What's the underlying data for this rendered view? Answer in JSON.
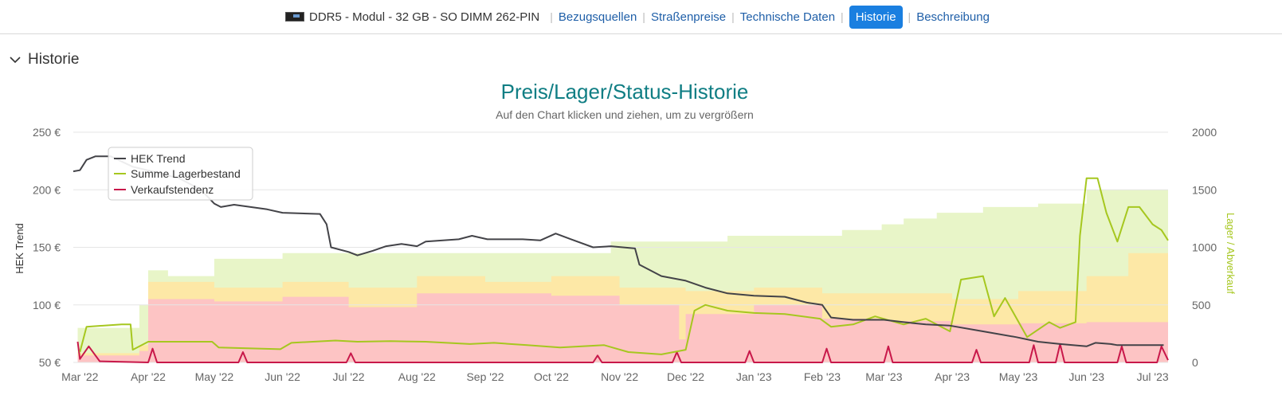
{
  "nav": {
    "product": "DDR5 - Modul - 32 GB - SO DIMM 262-PIN",
    "links": [
      "Bezugsquellen",
      "Straßenpreise",
      "Technische Daten",
      "Historie",
      "Beschreibung"
    ],
    "active": "Historie"
  },
  "section": {
    "title": "Historie",
    "icon": "chevron-down-icon"
  },
  "chart_data": {
    "type": "line",
    "title": "Preis/Lager/Status-Historie",
    "subtitle": "Auf den Chart klicken und ziehen, um zu vergrößern",
    "ylabel": "HEK Trend",
    "y2label": "Lager / Abverkauf",
    "ylim": [
      50,
      250
    ],
    "y2lim": [
      0,
      2000
    ],
    "y_ticks": [
      "50 €",
      "100 €",
      "150 €",
      "200 €",
      "250 €"
    ],
    "y2_ticks": [
      "0",
      "500",
      "1000",
      "1500",
      "2000"
    ],
    "x_ticks": [
      "Mar '22",
      "Apr '22",
      "May '22",
      "Jun '22",
      "Jul '22",
      "Aug '22",
      "Sep '22",
      "Oct '22",
      "Nov '22",
      "Dec '22",
      "Jan '23",
      "Feb '23",
      "Mar '23",
      "Apr '23",
      "May '23",
      "Jun '23",
      "Jul '23"
    ],
    "x_range": [
      "2022-02-26",
      "2023-07-08"
    ],
    "grid": true,
    "legend_position": "top-left",
    "colors": {
      "hek": "#434348",
      "lager": "#a6c71f",
      "verkauf": "#c8184a",
      "band_green": "#e8f5c8",
      "band_yellow": "#fde8a6",
      "band_red": "#fdc4c4"
    },
    "series": [
      {
        "name": "HEK Trend",
        "axis": "left",
        "points": [
          [
            "2022-02-26",
            216
          ],
          [
            "2022-03-01",
            217
          ],
          [
            "2022-03-04",
            226
          ],
          [
            "2022-03-08",
            229
          ],
          [
            "2022-03-15",
            229
          ],
          [
            "2022-03-25",
            220
          ],
          [
            "2022-04-05",
            215
          ],
          [
            "2022-04-15",
            210
          ],
          [
            "2022-04-25",
            200
          ],
          [
            "2022-05-01",
            188
          ],
          [
            "2022-05-04",
            185
          ],
          [
            "2022-05-10",
            187
          ],
          [
            "2022-05-25",
            183
          ],
          [
            "2022-06-01",
            180
          ],
          [
            "2022-06-18",
            179
          ],
          [
            "2022-06-21",
            170
          ],
          [
            "2022-06-23",
            150
          ],
          [
            "2022-07-01",
            146
          ],
          [
            "2022-07-05",
            143
          ],
          [
            "2022-07-12",
            147
          ],
          [
            "2022-07-18",
            151
          ],
          [
            "2022-07-25",
            153
          ],
          [
            "2022-08-01",
            151
          ],
          [
            "2022-08-05",
            155
          ],
          [
            "2022-08-20",
            157
          ],
          [
            "2022-08-26",
            160
          ],
          [
            "2022-09-02",
            157
          ],
          [
            "2022-09-08",
            157
          ],
          [
            "2022-09-18",
            157
          ],
          [
            "2022-09-26",
            156
          ],
          [
            "2022-10-03",
            162
          ],
          [
            "2022-10-10",
            157
          ],
          [
            "2022-10-20",
            150
          ],
          [
            "2022-10-28",
            151
          ],
          [
            "2022-11-08",
            149
          ],
          [
            "2022-11-10",
            135
          ],
          [
            "2022-11-20",
            125
          ],
          [
            "2022-12-01",
            121
          ],
          [
            "2022-12-10",
            115
          ],
          [
            "2022-12-20",
            110
          ],
          [
            "2023-01-01",
            108
          ],
          [
            "2023-01-15",
            107
          ],
          [
            "2023-01-25",
            102
          ],
          [
            "2023-02-01",
            100
          ],
          [
            "2023-02-05",
            89
          ],
          [
            "2023-02-15",
            87
          ],
          [
            "2023-03-01",
            87
          ],
          [
            "2023-03-10",
            85
          ],
          [
            "2023-03-20",
            83
          ],
          [
            "2023-03-31",
            82
          ],
          [
            "2023-04-15",
            77
          ],
          [
            "2023-04-30",
            72
          ],
          [
            "2023-05-10",
            68
          ],
          [
            "2023-05-20",
            66
          ],
          [
            "2023-06-01",
            64
          ],
          [
            "2023-06-05",
            67
          ],
          [
            "2023-06-12",
            66
          ],
          [
            "2023-06-15",
            65
          ],
          [
            "2023-07-01",
            65
          ],
          [
            "2023-07-06",
            65
          ]
        ]
      },
      {
        "name": "Summe Lagerbestand",
        "axis": "right",
        "points": [
          [
            "2022-03-01",
            90
          ],
          [
            "2022-03-04",
            310
          ],
          [
            "2022-03-20",
            330
          ],
          [
            "2022-03-24",
            330
          ],
          [
            "2022-03-25",
            110
          ],
          [
            "2022-04-01",
            180
          ],
          [
            "2022-04-30",
            180
          ],
          [
            "2022-05-03",
            130
          ],
          [
            "2022-05-31",
            115
          ],
          [
            "2022-06-05",
            170
          ],
          [
            "2022-06-25",
            190
          ],
          [
            "2022-07-05",
            180
          ],
          [
            "2022-07-20",
            185
          ],
          [
            "2022-08-05",
            180
          ],
          [
            "2022-08-25",
            160
          ],
          [
            "2022-09-05",
            170
          ],
          [
            "2022-09-20",
            150
          ],
          [
            "2022-10-05",
            130
          ],
          [
            "2022-10-25",
            150
          ],
          [
            "2022-11-05",
            90
          ],
          [
            "2022-11-20",
            70
          ],
          [
            "2022-12-01",
            110
          ],
          [
            "2022-12-05",
            450
          ],
          [
            "2022-12-10",
            500
          ],
          [
            "2022-12-20",
            450
          ],
          [
            "2023-01-01",
            430
          ],
          [
            "2023-01-15",
            420
          ],
          [
            "2023-01-31",
            380
          ],
          [
            "2023-02-05",
            310
          ],
          [
            "2023-02-15",
            330
          ],
          [
            "2023-02-25",
            400
          ],
          [
            "2023-03-10",
            330
          ],
          [
            "2023-03-20",
            380
          ],
          [
            "2023-03-31",
            270
          ],
          [
            "2023-04-05",
            720
          ],
          [
            "2023-04-15",
            750
          ],
          [
            "2023-04-20",
            400
          ],
          [
            "2023-04-25",
            560
          ],
          [
            "2023-05-05",
            220
          ],
          [
            "2023-05-15",
            350
          ],
          [
            "2023-05-20",
            300
          ],
          [
            "2023-05-27",
            350
          ],
          [
            "2023-05-29",
            1100
          ],
          [
            "2023-06-01",
            1600
          ],
          [
            "2023-06-06",
            1600
          ],
          [
            "2023-06-10",
            1300
          ],
          [
            "2023-06-15",
            1050
          ],
          [
            "2023-06-20",
            1350
          ],
          [
            "2023-06-25",
            1350
          ],
          [
            "2023-07-01",
            1200
          ],
          [
            "2023-07-05",
            1150
          ],
          [
            "2023-07-08",
            1060
          ]
        ]
      },
      {
        "name": "Verkaufstendenz",
        "axis": "right",
        "points": [
          [
            "2022-02-28",
            180
          ],
          [
            "2022-03-01",
            30
          ],
          [
            "2022-03-05",
            140
          ],
          [
            "2022-03-10",
            10
          ],
          [
            "2022-04-01",
            0
          ],
          [
            "2022-04-03",
            120
          ],
          [
            "2022-04-05",
            0
          ],
          [
            "2022-05-12",
            0
          ],
          [
            "2022-05-14",
            90
          ],
          [
            "2022-05-16",
            0
          ],
          [
            "2022-06-30",
            0
          ],
          [
            "2022-07-02",
            80
          ],
          [
            "2022-07-04",
            0
          ],
          [
            "2022-10-20",
            0
          ],
          [
            "2022-10-22",
            60
          ],
          [
            "2022-10-24",
            0
          ],
          [
            "2022-11-25",
            0
          ],
          [
            "2022-11-27",
            90
          ],
          [
            "2022-11-29",
            0
          ],
          [
            "2022-12-28",
            0
          ],
          [
            "2022-12-30",
            100
          ],
          [
            "2023-01-01",
            0
          ],
          [
            "2023-02-01",
            0
          ],
          [
            "2023-02-03",
            120
          ],
          [
            "2023-02-05",
            0
          ],
          [
            "2023-03-01",
            0
          ],
          [
            "2023-03-03",
            140
          ],
          [
            "2023-03-05",
            0
          ],
          [
            "2023-04-10",
            0
          ],
          [
            "2023-04-12",
            110
          ],
          [
            "2023-04-14",
            0
          ],
          [
            "2023-05-06",
            0
          ],
          [
            "2023-05-08",
            150
          ],
          [
            "2023-05-10",
            0
          ],
          [
            "2023-05-18",
            0
          ],
          [
            "2023-05-20",
            160
          ],
          [
            "2023-05-22",
            0
          ],
          [
            "2023-06-15",
            0
          ],
          [
            "2023-06-17",
            140
          ],
          [
            "2023-06-19",
            0
          ],
          [
            "2023-07-03",
            0
          ],
          [
            "2023-07-05",
            140
          ],
          [
            "2023-07-08",
            20
          ]
        ]
      }
    ],
    "bands": [
      {
        "name": "green",
        "axis": "right",
        "points": [
          [
            "2022-02-28",
            300
          ],
          [
            "2022-03-20",
            300
          ],
          [
            "2022-03-28",
            500
          ],
          [
            "2022-04-01",
            800
          ],
          [
            "2022-04-10",
            750
          ],
          [
            "2022-05-01",
            900
          ],
          [
            "2022-06-01",
            950
          ],
          [
            "2022-07-01",
            950
          ],
          [
            "2022-08-01",
            950
          ],
          [
            "2022-10-20",
            950
          ],
          [
            "2022-10-28",
            1050
          ],
          [
            "2022-12-01",
            1050
          ],
          [
            "2022-12-20",
            1100
          ],
          [
            "2023-01-15",
            1100
          ],
          [
            "2023-02-10",
            1150
          ],
          [
            "2023-02-28",
            1200
          ],
          [
            "2023-03-10",
            1250
          ],
          [
            "2023-03-25",
            1300
          ],
          [
            "2023-04-15",
            1350
          ],
          [
            "2023-05-10",
            1380
          ],
          [
            "2023-06-01",
            1500
          ],
          [
            "2023-07-08",
            1500
          ]
        ]
      },
      {
        "name": "yellow",
        "axis": "right",
        "points": [
          [
            "2022-02-28",
            80
          ],
          [
            "2022-03-28",
            150
          ],
          [
            "2022-04-01",
            700
          ],
          [
            "2022-05-01",
            650
          ],
          [
            "2022-06-01",
            700
          ],
          [
            "2022-07-01",
            650
          ],
          [
            "2022-08-01",
            750
          ],
          [
            "2022-09-01",
            700
          ],
          [
            "2022-10-01",
            750
          ],
          [
            "2022-11-01",
            650
          ],
          [
            "2022-12-01",
            620
          ],
          [
            "2023-01-01",
            650
          ],
          [
            "2023-02-01",
            600
          ],
          [
            "2023-03-01",
            600
          ],
          [
            "2023-04-01",
            550
          ],
          [
            "2023-05-01",
            620
          ],
          [
            "2023-06-01",
            750
          ],
          [
            "2023-06-20",
            950
          ],
          [
            "2023-07-08",
            400
          ]
        ]
      },
      {
        "name": "red",
        "axis": "right",
        "points": [
          [
            "2022-02-28",
            60
          ],
          [
            "2022-03-28",
            100
          ],
          [
            "2022-04-01",
            550
          ],
          [
            "2022-05-01",
            530
          ],
          [
            "2022-06-01",
            570
          ],
          [
            "2022-07-01",
            480
          ],
          [
            "2022-08-01",
            600
          ],
          [
            "2022-09-01",
            600
          ],
          [
            "2022-10-01",
            580
          ],
          [
            "2022-11-01",
            500
          ],
          [
            "2022-11-28",
            200
          ],
          [
            "2022-12-01",
            420
          ],
          [
            "2023-01-01",
            500
          ],
          [
            "2023-02-01",
            380
          ],
          [
            "2023-03-01",
            360
          ],
          [
            "2023-04-01",
            330
          ],
          [
            "2023-05-01",
            340
          ],
          [
            "2023-06-01",
            350
          ],
          [
            "2023-07-08",
            200
          ]
        ]
      }
    ]
  }
}
